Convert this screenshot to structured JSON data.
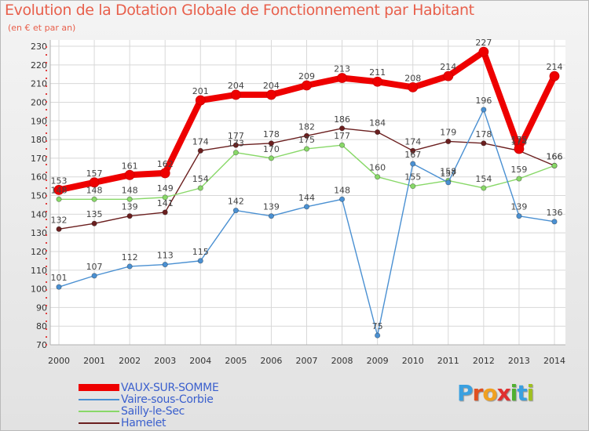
{
  "title": "Evolution de la Dotation Globale de Fonctionnement par Habitant",
  "subtitle": "(en € et par an)",
  "logo_text": "Proxiti",
  "chart_data": {
    "type": "line",
    "title": "Evolution de la Dotation Globale de Fonctionnement par Habitant",
    "ylabel": "(en € et par an)",
    "xlabel": "",
    "ylim": [
      70,
      230
    ],
    "yticks": [
      70,
      80,
      90,
      100,
      110,
      120,
      130,
      140,
      150,
      160,
      170,
      180,
      190,
      200,
      210,
      220,
      230
    ],
    "grid": true,
    "x": [
      "2000",
      "2001",
      "2002",
      "2003",
      "2004",
      "2005",
      "2006",
      "2007",
      "2008",
      "2009",
      "2010",
      "2011",
      "2012",
      "2013",
      "2014"
    ],
    "series": [
      {
        "name": "VAUX-SUR-SOMME",
        "color": "#ee0000",
        "values": [
          153,
          157,
          161,
          162,
          201,
          204,
          204,
          209,
          213,
          211,
          208,
          214,
          227,
          175,
          214
        ],
        "labels": [
          "153",
          "157",
          "161",
          "162",
          "201",
          "204",
          "204",
          "209",
          "213",
          "211",
          "208",
          "214",
          "227",
          "175",
          "214"
        ]
      },
      {
        "name": "Vaire-sous-Corbie",
        "color": "#4a90d2",
        "values": [
          101,
          107,
          112,
          113,
          115,
          142,
          139,
          144,
          148,
          75,
          167,
          157,
          196,
          139,
          136
        ],
        "labels": [
          "101",
          "107",
          "112",
          "113",
          "115",
          "142",
          "139",
          "144",
          "148",
          "75",
          "167",
          "157",
          "196",
          "139",
          "136"
        ]
      },
      {
        "name": "Sailly-le-Sec",
        "color": "#88d868",
        "values": [
          148,
          148,
          148,
          149,
          154,
          173,
          170,
          175,
          177,
          160,
          155,
          158,
          154,
          159,
          166
        ],
        "labels": [
          "148",
          "148",
          "148",
          "149",
          "154",
          "173",
          "170",
          "175",
          "177",
          "160",
          "155",
          "158",
          "154",
          "159",
          "166"
        ]
      },
      {
        "name": "Hamelet",
        "color": "#6b1f1f",
        "values": [
          132,
          135,
          139,
          141,
          174,
          177,
          178,
          182,
          186,
          184,
          174,
          179,
          178,
          174,
          166
        ],
        "labels": [
          "132",
          "135",
          "139",
          "141",
          "174",
          "177",
          "178",
          "182",
          "186",
          "184",
          "174",
          "179",
          "178",
          "174",
          "166"
        ]
      }
    ]
  }
}
